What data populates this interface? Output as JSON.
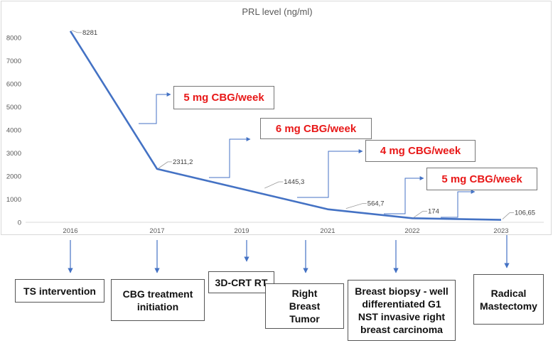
{
  "chart_data": {
    "type": "line",
    "title": "PRL level (ng/ml)",
    "xlabel": "",
    "ylabel": "",
    "categories": [
      "2016",
      "2017",
      "2019",
      "2021",
      "2022",
      "2023"
    ],
    "series": [
      {
        "name": "PRL level (ng/ml)",
        "x": [
          0,
          1,
          2,
          3,
          4,
          5
        ],
        "values": [
          8281,
          2311.2,
          1445.3,
          564.7,
          174,
          106.65
        ],
        "point_labels": [
          "8281",
          "2311,2",
          "1445,3",
          "564,7",
          "174",
          "106,65"
        ],
        "label_points": [
          {
            "x": 0.0,
            "y": 8281,
            "text": "8281"
          },
          {
            "x": 1.0,
            "y": 2311.2,
            "text": "2311,2"
          },
          {
            "x": 2.25,
            "y": 1445.3,
            "text": "1445,3"
          },
          {
            "x": 3.2,
            "y": 564.7,
            "text": "564,7"
          },
          {
            "x": 4.0,
            "y": 174,
            "text": "174"
          },
          {
            "x": 5.0,
            "y": 106.65,
            "text": "106,65"
          }
        ]
      }
    ],
    "ylim": [
      0,
      8000
    ],
    "yticks": [
      "0",
      "1000",
      "2000",
      "3000",
      "4000",
      "5000",
      "6000",
      "7000",
      "8000"
    ],
    "grid": false,
    "line_color": "#4472c4",
    "annotations": {
      "doses": [
        "5 mg CBG/week",
        "6 mg CBG/week",
        "4 mg CBG/week",
        "5 mg CBG/week"
      ],
      "events": [
        {
          "year": "2016",
          "label": "TS intervention"
        },
        {
          "year": "2017",
          "label": "CBG treatment initiation"
        },
        {
          "year": "2019",
          "label": "3D-CRT RT"
        },
        {
          "year": "",
          "label": "Right Breast Tumor"
        },
        {
          "year": "2022",
          "label": "Breast biopsy  - well differentiated G1 NST invasive right breast carcinoma"
        },
        {
          "year": "2023",
          "label": "Radical Mastectomy"
        }
      ]
    }
  },
  "colors": {
    "line": "#4472c4",
    "arrow": "#4472c4",
    "dose_text": "#e81818",
    "axis_text": "#595959"
  }
}
